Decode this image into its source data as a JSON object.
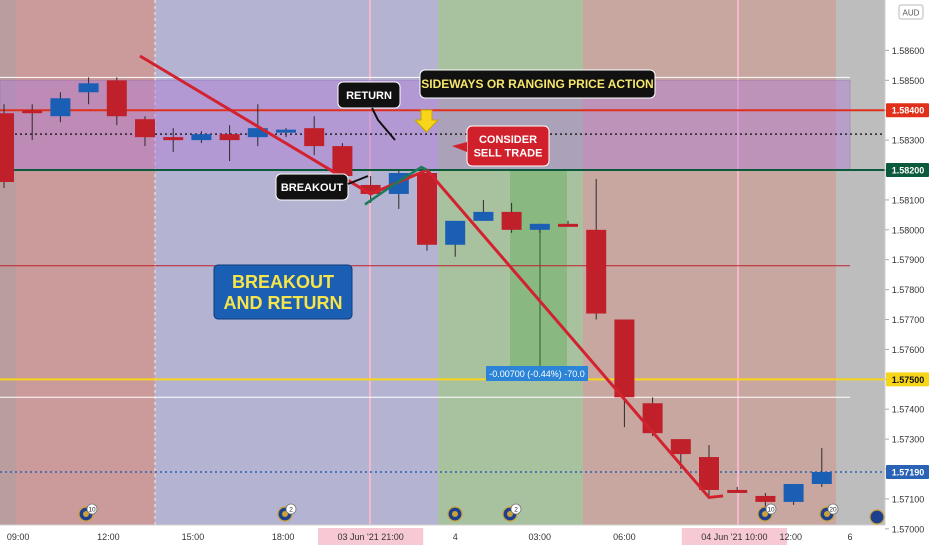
{
  "chart_data": {
    "type": "candlestick",
    "symbol_currency": "AUD",
    "ylim": [
      1.56955,
      1.58675
    ],
    "y_ticks": [
      "1.58600",
      "1.58500",
      "1.58400",
      "1.58300",
      "1.58200",
      "1.58100",
      "1.58000",
      "1.57900",
      "1.57800",
      "1.57700",
      "1.57600",
      "1.57500",
      "1.57400",
      "1.57300",
      "1.57200",
      "1.57100",
      "1.57000"
    ],
    "x_ticks": [
      {
        "label": "09:00",
        "i": 0.5
      },
      {
        "label": "12:00",
        "i": 3.7
      },
      {
        "label": "15:00",
        "i": 6.7
      },
      {
        "label": "18:00",
        "i": 9.9
      },
      {
        "label": "03 Jun '21  21:00",
        "i": 13.0,
        "highlight": true
      },
      {
        "label": "4",
        "i": 16.0
      },
      {
        "label": "03:00",
        "i": 19.0
      },
      {
        "label": "06:00",
        "i": 22.0
      },
      {
        "label": "04 Jun '21  10:00",
        "i": 25.9,
        "highlight": true
      },
      {
        "label": "12:00",
        "i": 27.9
      },
      {
        "label": "6",
        "i": 30.0
      }
    ],
    "candles": [
      {
        "o": 1.5839,
        "h": 1.5842,
        "l": 1.5814,
        "c": 1.5816
      },
      {
        "o": 1.584,
        "h": 1.5842,
        "l": 1.583,
        "c": 1.5839
      },
      {
        "o": 1.5838,
        "h": 1.5846,
        "l": 1.5836,
        "c": 1.5844
      },
      {
        "o": 1.5846,
        "h": 1.5851,
        "l": 1.5842,
        "c": 1.5849
      },
      {
        "o": 1.585,
        "h": 1.5851,
        "l": 1.5835,
        "c": 1.5838
      },
      {
        "o": 1.5837,
        "h": 1.5838,
        "l": 1.5828,
        "c": 1.5831
      },
      {
        "o": 1.5831,
        "h": 1.5834,
        "l": 1.5826,
        "c": 1.583
      },
      {
        "o": 1.583,
        "h": 1.5833,
        "l": 1.5829,
        "c": 1.5832
      },
      {
        "o": 1.5832,
        "h": 1.5835,
        "l": 1.5823,
        "c": 1.583
      },
      {
        "o": 1.5831,
        "h": 1.5842,
        "l": 1.5828,
        "c": 1.5834
      },
      {
        "o": 1.5833,
        "h": 1.5834,
        "l": 1.5831,
        "c": 1.58335
      },
      {
        "o": 1.5834,
        "h": 1.5838,
        "l": 1.5825,
        "c": 1.5828
      },
      {
        "o": 1.5828,
        "h": 1.5829,
        "l": 1.5816,
        "c": 1.5818
      },
      {
        "o": 1.5815,
        "h": 1.5818,
        "l": 1.5809,
        "c": 1.5812
      },
      {
        "o": 1.5812,
        "h": 1.582,
        "l": 1.5807,
        "c": 1.5819
      },
      {
        "o": 1.5819,
        "h": 1.582,
        "l": 1.5793,
        "c": 1.5795
      },
      {
        "o": 1.5795,
        "h": 1.5803,
        "l": 1.5791,
        "c": 1.5803
      },
      {
        "o": 1.5803,
        "h": 1.581,
        "l": 1.5803,
        "c": 1.5806
      },
      {
        "o": 1.5806,
        "h": 1.5809,
        "l": 1.5799,
        "c": 1.58
      },
      {
        "o": 1.58,
        "h": 1.5802,
        "l": 1.5799,
        "c": 1.5802
      },
      {
        "o": 1.5802,
        "h": 1.5803,
        "l": 1.5801,
        "c": 1.5801
      },
      {
        "o": 1.58,
        "h": 1.5817,
        "l": 1.577,
        "c": 1.5772
      },
      {
        "o": 1.577,
        "h": 1.577,
        "l": 1.5734,
        "c": 1.5744
      },
      {
        "o": 1.5742,
        "h": 1.5744,
        "l": 1.5731,
        "c": 1.5732
      },
      {
        "o": 1.573,
        "h": 1.573,
        "l": 1.572,
        "c": 1.5725
      },
      {
        "o": 1.5724,
        "h": 1.5728,
        "l": 1.571,
        "c": 1.5713
      },
      {
        "o": 1.5713,
        "h": 1.5714,
        "l": 1.5712,
        "c": 1.5712
      },
      {
        "o": 1.5711,
        "h": 1.5712,
        "l": 1.5706,
        "c": 1.5709
      },
      {
        "o": 1.5709,
        "h": 1.5715,
        "l": 1.5708,
        "c": 1.5715
      },
      {
        "o": 1.5715,
        "h": 1.5727,
        "l": 1.5714,
        "c": 1.5719
      }
    ],
    "price_labels": [
      {
        "value": 1.584,
        "text": "1.58400",
        "color": "#e1301a"
      },
      {
        "value": 1.582,
        "text": "1.58200",
        "color": "#0c5a3c"
      },
      {
        "value": 1.575,
        "text": "1.57500",
        "color": "#f7d51a"
      },
      {
        "value": 1.5719,
        "text": "1.57190",
        "color": "#2a62b6"
      }
    ],
    "annotations": {
      "sideways": "SIDEWAYS OR RANGING PRICE ACTION",
      "return": "RETURN",
      "breakout": "BREAKOUT",
      "consider_line1": "CONSIDER",
      "consider_line2": "SELL TRADE",
      "title_line1": "BREAKOUT",
      "title_line2": "AND RETURN",
      "measure": "-0.00700 (-0.44%) -70.0"
    },
    "event_badges": [
      "10",
      "2",
      "2",
      "10",
      "20"
    ],
    "colors": {
      "bull": "#1a5fb4",
      "bear": "#c0202a",
      "down_trendline": "#d3222f",
      "breakout_line": "#1c7a5a",
      "resistance_line": "#e1301a",
      "support_line": "#0c5a3c",
      "level_1575": "#f7d51a",
      "range_fill": "#b07bd8",
      "sell_zone": "#6fb268"
    }
  }
}
